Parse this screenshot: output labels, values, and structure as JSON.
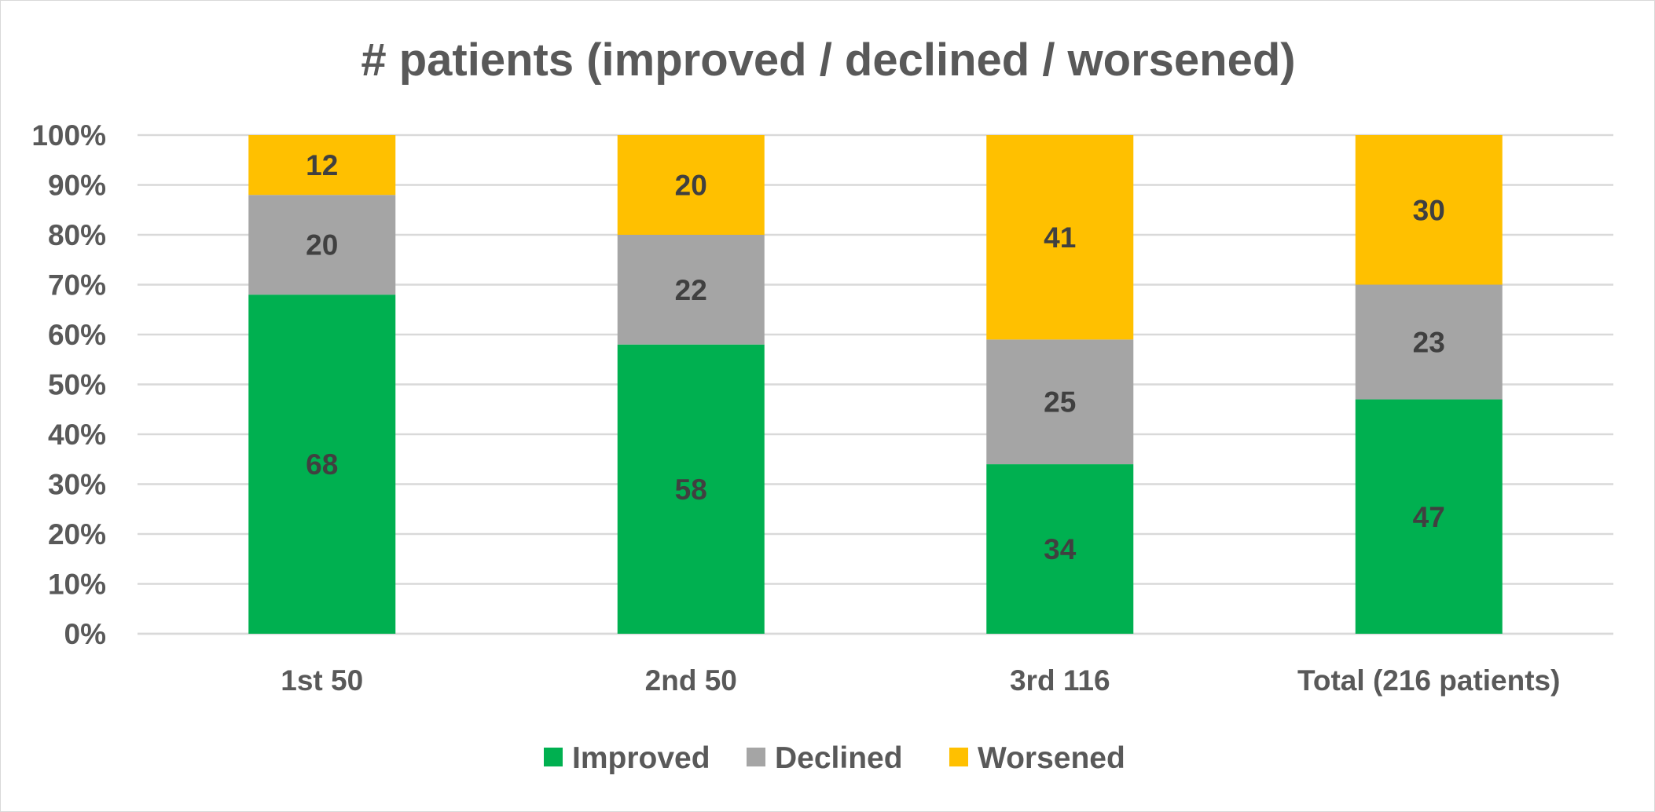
{
  "chart_data": {
    "type": "bar",
    "stacked": true,
    "percent_stacked": true,
    "title": "# patients (improved / declined / worsened)",
    "xlabel": "",
    "ylabel": "",
    "categories": [
      "1st 50",
      "2nd 50",
      "3rd 116",
      "Total (216 patients)"
    ],
    "series": [
      {
        "name": "Improved",
        "color": "#00b050",
        "values": [
          68,
          58,
          34,
          47
        ]
      },
      {
        "name": "Declined",
        "color": "#a5a5a5",
        "values": [
          20,
          22,
          25,
          23
        ]
      },
      {
        "name": "Worsened",
        "color": "#ffc000",
        "values": [
          12,
          20,
          41,
          30
        ]
      }
    ],
    "ylim": [
      0,
      100
    ],
    "yticks": [
      "0%",
      "10%",
      "20%",
      "30%",
      "40%",
      "50%",
      "60%",
      "70%",
      "80%",
      "90%",
      "100%"
    ],
    "grid": true,
    "legend_position": "bottom",
    "gridline_color": "#d9d9d9"
  }
}
